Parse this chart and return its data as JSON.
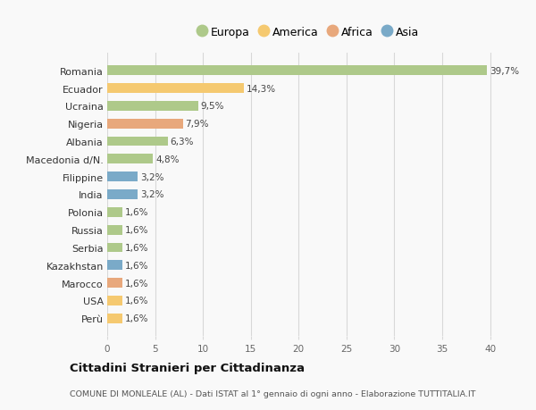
{
  "countries": [
    "Romania",
    "Ecuador",
    "Ucraina",
    "Nigeria",
    "Albania",
    "Macedonia d/N.",
    "Filippine",
    "India",
    "Polonia",
    "Russia",
    "Serbia",
    "Kazakhstan",
    "Marocco",
    "USA",
    "Perù"
  ],
  "values": [
    39.7,
    14.3,
    9.5,
    7.9,
    6.3,
    4.8,
    3.2,
    3.2,
    1.6,
    1.6,
    1.6,
    1.6,
    1.6,
    1.6,
    1.6
  ],
  "labels": [
    "39,7%",
    "14,3%",
    "9,5%",
    "7,9%",
    "6,3%",
    "4,8%",
    "3,2%",
    "3,2%",
    "1,6%",
    "1,6%",
    "1,6%",
    "1,6%",
    "1,6%",
    "1,6%",
    "1,6%"
  ],
  "continents": [
    "Europa",
    "America",
    "Europa",
    "Africa",
    "Europa",
    "Europa",
    "Asia",
    "Asia",
    "Europa",
    "Europa",
    "Europa",
    "Asia",
    "Africa",
    "America",
    "America"
  ],
  "continent_colors": {
    "Europa": "#aec98a",
    "America": "#f5c970",
    "Africa": "#e8a87c",
    "Asia": "#7aaac8"
  },
  "legend_order": [
    "Europa",
    "America",
    "Africa",
    "Asia"
  ],
  "title": "Cittadini Stranieri per Cittadinanza",
  "subtitle": "COMUNE DI MONLEALE (AL) - Dati ISTAT al 1° gennaio di ogni anno - Elaborazione TUTTITALIA.IT",
  "xlim": [
    0,
    42
  ],
  "xticks": [
    0,
    5,
    10,
    15,
    20,
    25,
    30,
    35,
    40
  ],
  "background_color": "#f9f9f9",
  "grid_color": "#d8d8d8",
  "bar_height": 0.55
}
